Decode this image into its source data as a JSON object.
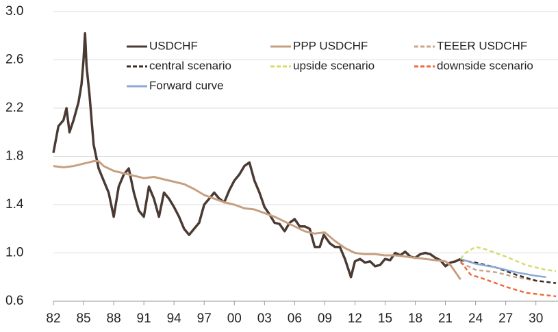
{
  "chart_data": {
    "type": "line",
    "xlim": [
      1982,
      2032.2
    ],
    "ylim": [
      0.6,
      3.0
    ],
    "xticks": [
      {
        "value": 1982,
        "label": "82"
      },
      {
        "value": 1985,
        "label": "85"
      },
      {
        "value": 1988,
        "label": "88"
      },
      {
        "value": 1991,
        "label": "91"
      },
      {
        "value": 1994,
        "label": "94"
      },
      {
        "value": 1997,
        "label": "97"
      },
      {
        "value": 2000,
        "label": "00"
      },
      {
        "value": 2003,
        "label": "03"
      },
      {
        "value": 2006,
        "label": "06"
      },
      {
        "value": 2009,
        "label": "09"
      },
      {
        "value": 2012,
        "label": "12"
      },
      {
        "value": 2015,
        "label": "15"
      },
      {
        "value": 2018,
        "label": "18"
      },
      {
        "value": 2021,
        "label": "21"
      },
      {
        "value": 2024,
        "label": "24"
      },
      {
        "value": 2027,
        "label": "27"
      },
      {
        "value": 2030,
        "label": "30"
      }
    ],
    "yticks": [
      0.6,
      {
        "value": 1,
        "label": "1.0"
      },
      1.4,
      1.8,
      2.2,
      2.6,
      {
        "value": 3,
        "label": "3.0"
      }
    ],
    "grid": true,
    "series": [
      {
        "name": "USDCHF",
        "color": "#4a3a33",
        "dashed": false,
        "width": 3.5,
        "x": [
          1982.0,
          1982.5,
          1983.0,
          1983.3,
          1983.6,
          1984.0,
          1984.5,
          1984.8,
          1985.0,
          1985.15,
          1985.3,
          1985.6,
          1986.0,
          1986.5,
          1987.0,
          1987.5,
          1988.0,
          1988.5,
          1989.0,
          1989.5,
          1990.0,
          1990.5,
          1991.0,
          1991.5,
          1992.0,
          1992.5,
          1993.0,
          1993.5,
          1994.0,
          1994.5,
          1995.0,
          1995.5,
          1996.0,
          1996.5,
          1997.0,
          1997.5,
          1998.0,
          1998.5,
          1999.0,
          1999.5,
          2000.0,
          2000.5,
          2001.0,
          2001.5,
          2002.0,
          2002.5,
          2003.0,
          2003.5,
          2004.0,
          2004.5,
          2005.0,
          2005.5,
          2006.0,
          2006.5,
          2007.0,
          2007.5,
          2008.0,
          2008.5,
          2008.9,
          2009.5,
          2010.0,
          2010.5,
          2011.0,
          2011.6,
          2012.0,
          2012.5,
          2013.0,
          2013.5,
          2014.0,
          2014.5,
          2015.0,
          2015.5,
          2016.0,
          2016.5,
          2017.0,
          2017.5,
          2018.0,
          2018.5,
          2019.0,
          2019.5,
          2020.0,
          2020.5,
          2021.0,
          2021.5,
          2022.0,
          2022.5
        ],
        "values": [
          1.83,
          2.05,
          2.1,
          2.2,
          2.0,
          2.1,
          2.25,
          2.4,
          2.6,
          2.82,
          2.55,
          2.3,
          1.9,
          1.7,
          1.6,
          1.5,
          1.3,
          1.55,
          1.65,
          1.7,
          1.5,
          1.35,
          1.3,
          1.55,
          1.45,
          1.3,
          1.5,
          1.45,
          1.38,
          1.3,
          1.2,
          1.15,
          1.2,
          1.25,
          1.4,
          1.45,
          1.5,
          1.45,
          1.42,
          1.52,
          1.6,
          1.65,
          1.72,
          1.75,
          1.6,
          1.5,
          1.38,
          1.32,
          1.25,
          1.24,
          1.18,
          1.25,
          1.28,
          1.22,
          1.22,
          1.2,
          1.05,
          1.05,
          1.15,
          1.08,
          1.05,
          1.05,
          0.95,
          0.8,
          0.93,
          0.95,
          0.92,
          0.93,
          0.89,
          0.9,
          0.95,
          0.94,
          1.0,
          0.98,
          1.01,
          0.97,
          0.96,
          0.99,
          1.0,
          0.99,
          0.96,
          0.94,
          0.89,
          0.92,
          0.93,
          0.95
        ]
      },
      {
        "name": "PPP USDCHF",
        "color": "#c79f80",
        "dashed": false,
        "width": 3,
        "x": [
          1982,
          1983,
          1984,
          1985,
          1986,
          1986.5,
          1987,
          1988,
          1989,
          1990,
          1991,
          1992,
          1993,
          1994,
          1995,
          1996,
          1997,
          1998,
          1999,
          2000,
          2001,
          2002,
          2003,
          2004,
          2005,
          2006,
          2007,
          2008,
          2009,
          2010,
          2011,
          2012,
          2013,
          2014,
          2015,
          2016,
          2017,
          2018,
          2019,
          2020,
          2021,
          2021.5,
          2022.0,
          2022.5
        ],
        "values": [
          1.72,
          1.71,
          1.72,
          1.74,
          1.76,
          1.76,
          1.72,
          1.68,
          1.66,
          1.64,
          1.62,
          1.63,
          1.61,
          1.59,
          1.57,
          1.53,
          1.48,
          1.45,
          1.42,
          1.4,
          1.37,
          1.36,
          1.33,
          1.3,
          1.26,
          1.22,
          1.18,
          1.16,
          1.17,
          1.1,
          1.04,
          1.0,
          0.99,
          0.99,
          0.98,
          0.98,
          0.97,
          0.96,
          0.95,
          0.94,
          0.93,
          0.9,
          0.84,
          0.78
        ]
      },
      {
        "name": "TEEER USDCHF",
        "color": "#c9a58a",
        "dashed": true,
        "width": 2.5,
        "x": [
          2022.5,
          2024,
          2026,
          2028,
          2030,
          2031
        ],
        "values": [
          0.92,
          0.86,
          0.84,
          0.8,
          0.77,
          0.76
        ]
      },
      {
        "name": "central scenario",
        "color": "#3b2b24",
        "dashed": true,
        "width": 2.5,
        "x": [
          2022.5,
          2024,
          2026,
          2028,
          2030,
          2032
        ],
        "values": [
          0.94,
          0.92,
          0.88,
          0.82,
          0.77,
          0.75
        ]
      },
      {
        "name": "upside scenario",
        "color": "#d6dc6a",
        "dashed": true,
        "width": 2.5,
        "x": [
          2022.5,
          2023,
          2024,
          2025,
          2027,
          2029,
          2031,
          2032
        ],
        "values": [
          0.95,
          1.0,
          1.05,
          1.03,
          0.97,
          0.9,
          0.86,
          0.85
        ]
      },
      {
        "name": "downside scenario",
        "color": "#ee6a3a",
        "dashed": true,
        "width": 2.5,
        "x": [
          2022.5,
          2023.5,
          2025,
          2027,
          2029,
          2031,
          2032
        ],
        "values": [
          0.93,
          0.82,
          0.78,
          0.72,
          0.67,
          0.65,
          0.64
        ]
      },
      {
        "name": "Forward curve",
        "color": "#8aa9d6",
        "dashed": false,
        "width": 2.5,
        "x": [
          2022.5,
          2024,
          2026,
          2028,
          2030,
          2031
        ],
        "values": [
          0.95,
          0.91,
          0.88,
          0.84,
          0.81,
          0.8
        ]
      }
    ]
  }
}
